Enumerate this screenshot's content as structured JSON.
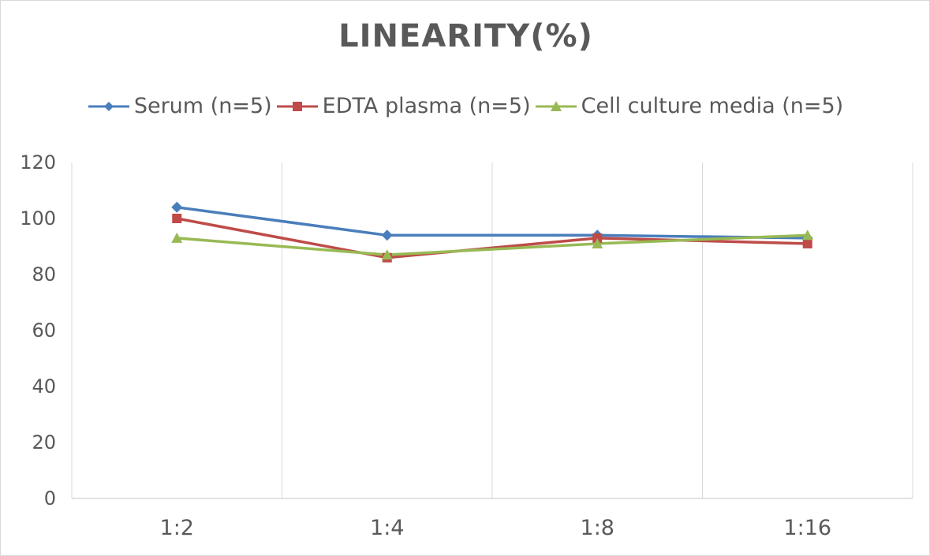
{
  "chart_data": {
    "type": "line",
    "title": "LINEARITY(%)",
    "xlabel": "",
    "ylabel": "",
    "categories": [
      "1:2",
      "1:4",
      "1:8",
      "1:16"
    ],
    "ylim": [
      0,
      120
    ],
    "yticks": [
      0,
      20,
      40,
      60,
      80,
      100,
      120
    ],
    "grid": "vertical",
    "legend_position": "top",
    "series": [
      {
        "name": "Serum (n=5)",
        "values": [
          104,
          94,
          94,
          93
        ],
        "color": "#4a7ebb",
        "marker": "diamond"
      },
      {
        "name": "EDTA plasma (n=5)",
        "values": [
          100,
          86,
          93,
          91
        ],
        "color": "#be4b48",
        "marker": "square"
      },
      {
        "name": "Cell culture media (n=5)",
        "values": [
          93,
          87,
          91,
          94
        ],
        "color": "#98b954",
        "marker": "triangle"
      }
    ]
  }
}
